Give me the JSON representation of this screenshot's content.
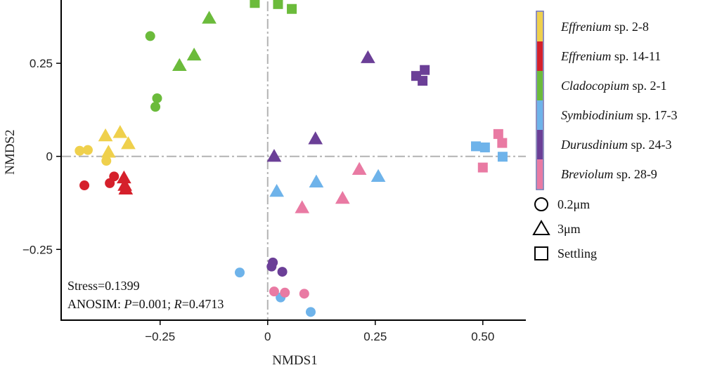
{
  "chart_data": {
    "type": "scatter",
    "xlabel": "NMDS1",
    "ylabel": "NMDS2",
    "xlim": [
      -0.48,
      0.6
    ],
    "ylim": [
      -0.44,
      0.42
    ],
    "x_ticks": [
      {
        "value": -0.25,
        "label": "−0.25"
      },
      {
        "value": 0,
        "label": "0"
      },
      {
        "value": 0.25,
        "label": "0.25"
      },
      {
        "value": 0.5,
        "label": "0.50"
      }
    ],
    "y_ticks": [
      {
        "value": 0.25,
        "label": "0.25"
      },
      {
        "value": 0,
        "label": "0"
      },
      {
        "value": -0.25,
        "label": "−0.25"
      }
    ],
    "reference_lines": {
      "x": 0,
      "y": 0,
      "style": "dash-dot",
      "color": "#b3b3b3"
    },
    "annotations": {
      "stress": "Stress=0.1399",
      "anosim_prefix": "ANOSIM: ",
      "anosim_p_symbol": "P",
      "anosim_p_value": "=0.001; ",
      "anosim_r_symbol": "R",
      "anosim_r_value": "=0.4713"
    },
    "legend_placement": "right",
    "shape_legend": [
      {
        "shape": "circle",
        "label": "0.2μm"
      },
      {
        "shape": "triangle",
        "label": "3μm"
      },
      {
        "shape": "square",
        "label": "Settling"
      }
    ],
    "series": [
      {
        "genus": "Effrenium",
        "suffix": " sp. 2-8",
        "color": "#efd04c",
        "points": [
          {
            "shape": "circle",
            "x": -0.437,
            "y": 0.015
          },
          {
            "shape": "circle",
            "x": -0.418,
            "y": 0.017
          },
          {
            "shape": "circle",
            "x": -0.375,
            "y": -0.012
          },
          {
            "shape": "triangle",
            "x": -0.377,
            "y": 0.055
          },
          {
            "shape": "triangle",
            "x": -0.343,
            "y": 0.064
          },
          {
            "shape": "triangle",
            "x": -0.37,
            "y": 0.011
          },
          {
            "shape": "triangle",
            "x": -0.324,
            "y": 0.034
          }
        ]
      },
      {
        "genus": "Effrenium",
        "suffix": " sp. 14-11",
        "color": "#d5202b",
        "points": [
          {
            "shape": "circle",
            "x": -0.426,
            "y": -0.078
          },
          {
            "shape": "circle",
            "x": -0.367,
            "y": -0.072
          },
          {
            "shape": "circle",
            "x": -0.357,
            "y": -0.054
          },
          {
            "shape": "triangle",
            "x": -0.334,
            "y": -0.058
          },
          {
            "shape": "triangle",
            "x": -0.332,
            "y": -0.078
          },
          {
            "shape": "triangle",
            "x": -0.33,
            "y": -0.088
          }
        ]
      },
      {
        "genus": "Cladocopium",
        "suffix": " sp. 2-1",
        "color": "#6bbb3b",
        "points": [
          {
            "shape": "circle",
            "x": -0.273,
            "y": 0.323
          },
          {
            "shape": "circle",
            "x": -0.257,
            "y": 0.156
          },
          {
            "shape": "circle",
            "x": -0.261,
            "y": 0.133
          },
          {
            "shape": "triangle",
            "x": -0.136,
            "y": 0.371
          },
          {
            "shape": "triangle",
            "x": -0.171,
            "y": 0.272
          },
          {
            "shape": "triangle",
            "x": -0.205,
            "y": 0.244
          },
          {
            "shape": "square",
            "x": -0.03,
            "y": 0.412
          },
          {
            "shape": "square",
            "x": 0.024,
            "y": 0.409
          },
          {
            "shape": "square",
            "x": 0.056,
            "y": 0.396
          }
        ]
      },
      {
        "genus": "Symbiodinium",
        "suffix": " sp. 17-3",
        "color": "#6eb3ea",
        "points": [
          {
            "shape": "circle",
            "x": -0.065,
            "y": -0.312
          },
          {
            "shape": "circle",
            "x": 0.03,
            "y": -0.379
          },
          {
            "shape": "circle",
            "x": 0.1,
            "y": -0.418
          },
          {
            "shape": "triangle",
            "x": 0.021,
            "y": -0.094
          },
          {
            "shape": "triangle",
            "x": 0.113,
            "y": -0.069
          },
          {
            "shape": "triangle",
            "x": 0.257,
            "y": -0.054
          },
          {
            "shape": "square",
            "x": 0.484,
            "y": 0.027
          },
          {
            "shape": "square",
            "x": 0.505,
            "y": 0.024
          },
          {
            "shape": "square",
            "x": 0.546,
            "y": -0.001
          }
        ]
      },
      {
        "genus": "Durusdinium",
        "suffix": " sp. 24-3",
        "color": "#6b3f97",
        "points": [
          {
            "shape": "circle",
            "x": 0.009,
            "y": -0.296
          },
          {
            "shape": "circle",
            "x": 0.012,
            "y": -0.285
          },
          {
            "shape": "circle",
            "x": 0.034,
            "y": -0.31
          },
          {
            "shape": "triangle",
            "x": 0.015,
            "y": 0.0
          },
          {
            "shape": "triangle",
            "x": 0.111,
            "y": 0.047
          },
          {
            "shape": "triangle",
            "x": 0.233,
            "y": 0.265
          },
          {
            "shape": "square",
            "x": 0.345,
            "y": 0.216
          },
          {
            "shape": "square",
            "x": 0.365,
            "y": 0.232
          },
          {
            "shape": "square",
            "x": 0.36,
            "y": 0.203
          }
        ]
      },
      {
        "genus": "Breviolum",
        "suffix": " sp. 28-9",
        "color": "#e97aa3",
        "points": [
          {
            "shape": "circle",
            "x": 0.015,
            "y": -0.363
          },
          {
            "shape": "circle",
            "x": 0.04,
            "y": -0.366
          },
          {
            "shape": "circle",
            "x": 0.085,
            "y": -0.369
          },
          {
            "shape": "triangle",
            "x": 0.08,
            "y": -0.138
          },
          {
            "shape": "triangle",
            "x": 0.174,
            "y": -0.113
          },
          {
            "shape": "triangle",
            "x": 0.213,
            "y": -0.035
          },
          {
            "shape": "square",
            "x": 0.536,
            "y": 0.06
          },
          {
            "shape": "square",
            "x": 0.545,
            "y": 0.036
          },
          {
            "shape": "square",
            "x": 0.5,
            "y": -0.03
          }
        ]
      }
    ]
  }
}
